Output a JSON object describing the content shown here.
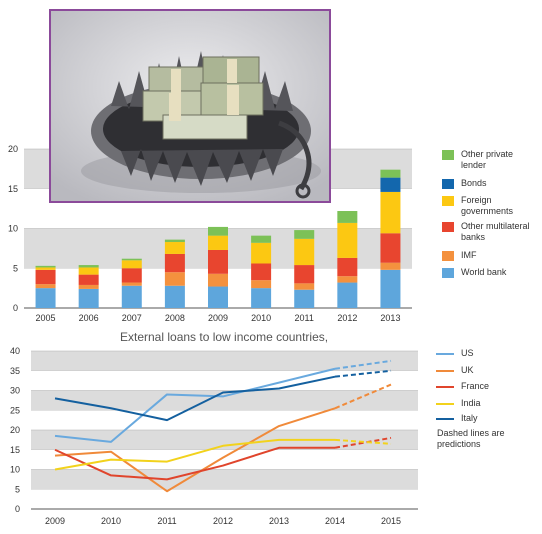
{
  "chart_data": [
    {
      "type": "bar",
      "stacked": true,
      "title": "External loans to low income countries,",
      "categories": [
        "2005",
        "2006",
        "2007",
        "2008",
        "2009",
        "2010",
        "2011",
        "2012",
        "2013"
      ],
      "ylim": [
        0,
        20
      ],
      "yticks": [
        "0",
        "5",
        "10",
        "15",
        "20"
      ],
      "grid": "alternating bands",
      "legend_position": "right",
      "series": [
        {
          "name": "World bank",
          "color": "#5ea6dc",
          "values": [
            2.5,
            2.4,
            2.8,
            2.8,
            2.7,
            2.5,
            2.3,
            3.2,
            4.8
          ]
        },
        {
          "name": "IMF",
          "color": "#f4913e",
          "values": [
            0.5,
            0.5,
            0.4,
            1.7,
            1.6,
            1.0,
            0.8,
            0.8,
            0.9
          ]
        },
        {
          "name": "Other multilateral banks",
          "color": "#e8452f",
          "values": [
            1.8,
            1.3,
            1.8,
            2.3,
            3.0,
            2.1,
            2.3,
            2.3,
            3.7
          ]
        },
        {
          "name": "Foreign governments",
          "color": "#fcc812",
          "values": [
            0.3,
            0.9,
            1.0,
            1.5,
            1.8,
            2.6,
            3.3,
            4.4,
            5.2
          ]
        },
        {
          "name": "Bonds",
          "color": "#1367ad",
          "values": [
            0,
            0,
            0,
            0,
            0,
            0,
            0,
            0,
            1.8
          ]
        },
        {
          "name": "Other private lender",
          "color": "#7cc157",
          "values": [
            0.2,
            0.3,
            0.2,
            0.3,
            1.1,
            0.9,
            1.1,
            1.5,
            1.0
          ]
        }
      ]
    },
    {
      "type": "line",
      "x": [
        "2009",
        "2010",
        "2011",
        "2012",
        "2013",
        "2014",
        "2015"
      ],
      "ylim": [
        0,
        40
      ],
      "yticks": [
        "0",
        "5",
        "10",
        "15",
        "20",
        "25",
        "30",
        "35",
        "40"
      ],
      "grid": "alternating bands",
      "legend_position": "right",
      "predicted_from": "2014",
      "series": [
        {
          "name": "US",
          "color": "#69a9de",
          "values": [
            18.5,
            17,
            29,
            28.5,
            32,
            35.5,
            37.5
          ]
        },
        {
          "name": "UK",
          "color": "#f08a3a",
          "values": [
            13.5,
            14.5,
            4.5,
            13,
            21,
            25.5,
            31.5
          ]
        },
        {
          "name": "France",
          "color": "#e0452c",
          "values": [
            15,
            8.5,
            7.5,
            11,
            15.5,
            15.5,
            18
          ]
        },
        {
          "name": "India",
          "color": "#f2d21c",
          "values": [
            10,
            12.5,
            12,
            16,
            17.5,
            17.5,
            16.5
          ]
        },
        {
          "name": "Italy",
          "color": "#14609f",
          "values": [
            28,
            25.5,
            22.5,
            29.5,
            30.5,
            33.5,
            35
          ]
        }
      ],
      "note": "Dashed lines are predictions"
    }
  ],
  "legend_top": {
    "items": [
      {
        "label_lines": [
          "Other private",
          "lender"
        ],
        "color": "#7cc157"
      },
      {
        "label_lines": [
          "Bonds"
        ],
        "color": "#1367ad"
      },
      {
        "label_lines": [
          "Foreign",
          "governments"
        ],
        "color": "#fcc812"
      },
      {
        "label_lines": [
          "Other multilateral",
          "banks"
        ],
        "color": "#e8452f"
      },
      {
        "label_lines": [
          "IMF"
        ],
        "color": "#f4913e"
      },
      {
        "label_lines": [
          "World bank"
        ],
        "color": "#5ea6dc"
      }
    ]
  },
  "legend_bottom": {
    "items": [
      "US",
      "UK",
      "France",
      "India",
      "Italy"
    ],
    "note_lines": [
      "Dashed lines are",
      "predictions"
    ]
  },
  "photo": {
    "frame_color": "#8b4a9a"
  }
}
